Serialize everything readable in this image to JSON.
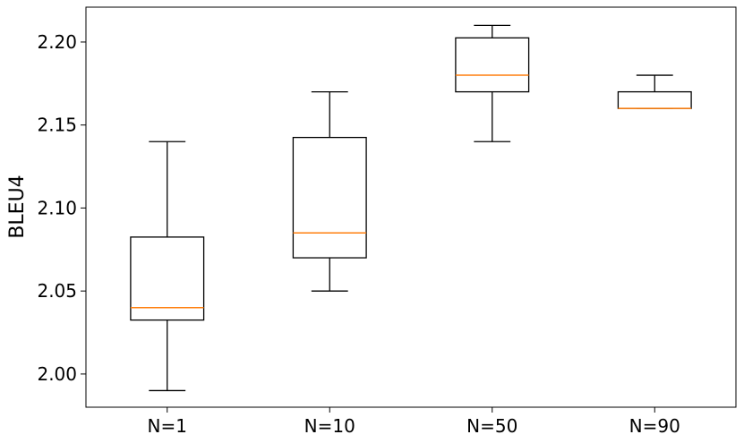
{
  "chart_data": {
    "type": "box",
    "ylabel": "BLEU4",
    "categories": [
      "N=1",
      "N=10",
      "N=50",
      "N=90"
    ],
    "ylim": [
      1.98,
      2.221
    ],
    "yticks": [
      "2.00",
      "2.05",
      "2.10",
      "2.15",
      "2.20"
    ],
    "grid": false,
    "boxes": [
      {
        "whisker_low": 1.99,
        "q1": 2.0325,
        "median": 2.04,
        "q3": 2.0825,
        "whisker_high": 2.14
      },
      {
        "whisker_low": 2.05,
        "q1": 2.07,
        "median": 2.085,
        "q3": 2.1425,
        "whisker_high": 2.17
      },
      {
        "whisker_low": 2.14,
        "q1": 2.17,
        "median": 2.18,
        "q3": 2.2025,
        "whisker_high": 2.21
      },
      {
        "whisker_low": 2.16,
        "q1": 2.16,
        "median": 2.16,
        "q3": 2.17,
        "whisker_high": 2.18
      }
    ],
    "colors": {
      "box": "#000000",
      "median": "#ff7f0e"
    }
  }
}
